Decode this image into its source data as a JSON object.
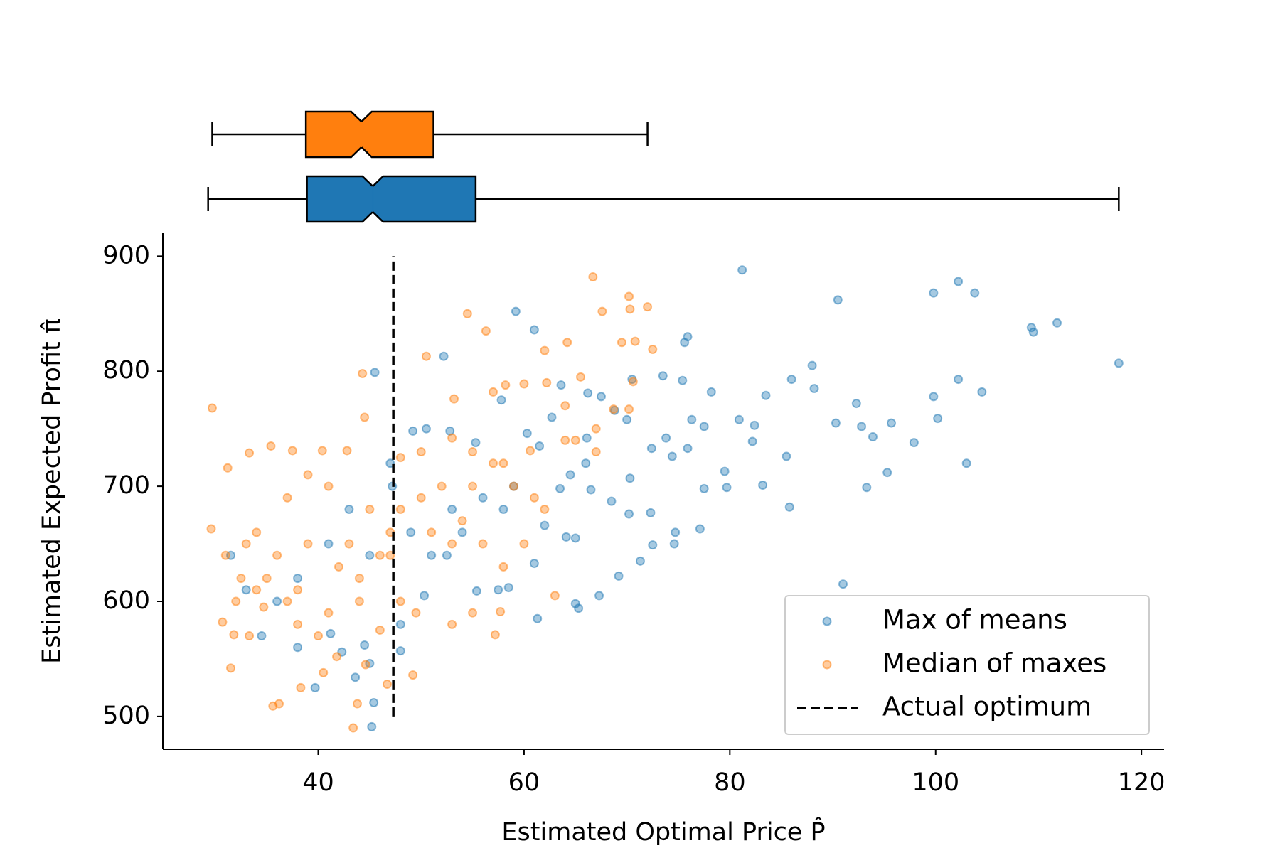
{
  "chart_data": [
    {
      "type": "box",
      "xlim": [
        24.9,
        122.2
      ],
      "notch": true,
      "series": [
        {
          "color": "#ff7f0e",
          "whislo": 29.7,
          "q1": 38.8,
          "med": 44.2,
          "q3": 51.2,
          "whishi": 72,
          "cilo": 43.2,
          "cihi": 45.2
        },
        {
          "color": "#1f77b4",
          "whislo": 29.3,
          "q1": 38.9,
          "med": 45.3,
          "q3": 55.3,
          "whishi": 117.8,
          "cilo": 44.3,
          "cihi": 46.3
        }
      ]
    },
    {
      "type": "scatter",
      "xlabel": "Estimated Optimal Price P̂",
      "ylabel": "Estimated Expected Profit π̂",
      "xlim": [
        24.9,
        122.2
      ],
      "ylim": [
        471.5,
        920
      ],
      "xticks": [
        40,
        60,
        80,
        100,
        120
      ],
      "yticks": [
        500,
        600,
        700,
        800,
        900
      ],
      "grid": false,
      "legend": "lower right",
      "series": [
        {
          "name": "Max of means",
          "color": "#1f77b4",
          "x": [
            81.2,
            90.5,
            99.8,
            102.2,
            103.8,
            109.3,
            109.5,
            111.8,
            117.8,
            75.6,
            75.9,
            59.2,
            61,
            52.2,
            45.5,
            78.2,
            73.5,
            75.4,
            70.5,
            86,
            88,
            88.2,
            83.5,
            92.3,
            99.8,
            102.2,
            104.5,
            80.9,
            82.4,
            82.2,
            90.3,
            92.8,
            93.9,
            95.7,
            97.9,
            100.2,
            95.3,
            93.3,
            103,
            85.5,
            79.5,
            79.7,
            77.5,
            83.2,
            85.8,
            91,
            77.1,
            74.7,
            74.6,
            72.5,
            71.3,
            69.2,
            67.3,
            72.3,
            70.2,
            70.3,
            68.5,
            66.5,
            64.1,
            65,
            65,
            65.3,
            61.3,
            61,
            58.5,
            57.5,
            55.4,
            54,
            50.3,
            48,
            45.2,
            45.4,
            45,
            44.5,
            43.6,
            42.3,
            39.7,
            41.2,
            47.2,
            49.2,
            50.5,
            52.8,
            55.3,
            57.8,
            60.3,
            62.7,
            63.6,
            66.2,
            67.5,
            68.8,
            70,
            72.4,
            74.4,
            75.9,
            73.8,
            76.3,
            77.5,
            66.1,
            64.5,
            62,
            58,
            56,
            53,
            51,
            49,
            47,
            45,
            43,
            41,
            38,
            36,
            33,
            31.5,
            34.5,
            38,
            48,
            52.5,
            59,
            61.5,
            63.5,
            66
          ],
          "values": [
            888,
            862,
            868,
            878,
            868,
            838,
            834,
            842,
            807,
            825,
            830,
            852,
            836,
            813,
            799,
            782,
            796,
            792,
            793,
            793,
            805,
            785,
            779,
            772,
            778,
            793,
            782,
            758,
            753,
            739,
            755,
            752,
            743,
            755,
            738,
            759,
            712,
            699,
            720,
            726,
            713,
            699,
            698,
            701,
            682,
            615,
            663,
            660,
            650,
            649,
            635,
            622,
            605,
            677,
            676,
            707,
            687,
            697,
            656,
            655,
            598,
            594,
            585,
            633,
            612,
            610,
            609,
            660,
            605,
            557,
            491,
            512,
            546,
            562,
            534,
            556,
            525,
            572,
            700,
            748,
            750,
            748,
            738,
            775,
            746,
            760,
            788,
            781,
            778,
            766,
            758,
            733,
            726,
            733,
            742,
            758,
            752,
            742,
            710,
            666,
            680,
            690,
            680,
            640,
            660,
            720,
            640,
            680,
            650,
            620,
            600,
            610,
            640,
            570,
            560,
            580,
            640,
            700,
            735,
            698,
            720
          ]
        },
        {
          "name": "Median of maxes",
          "color": "#ff7f0e",
          "x": [
            66.7,
            70.2,
            70.3,
            72,
            67.6,
            54.5,
            56.3,
            64.2,
            62,
            69.5,
            70.8,
            72.5,
            50.5,
            44.3,
            62.2,
            64,
            65.5,
            58.2,
            60,
            57,
            53.2,
            68.7,
            70.2,
            70.6,
            67,
            64,
            60.6,
            58,
            55,
            53,
            50,
            48,
            44.5,
            42.8,
            40.4,
            37.5,
            35.4,
            33.3,
            31.2,
            29.7,
            29.6,
            31,
            32,
            30.7,
            31.8,
            31.5,
            33.3,
            34.7,
            35.6,
            36.2,
            38.3,
            40.5,
            41.8,
            43.4,
            43.8,
            44.6,
            46.7,
            49.2,
            48,
            44,
            41,
            38,
            36,
            34,
            32.5,
            37,
            39,
            41,
            43,
            45,
            47,
            50,
            52,
            54,
            56,
            58,
            60,
            62,
            63,
            55,
            53,
            57.2,
            57.7,
            49.5,
            46,
            40,
            38,
            35,
            33,
            42,
            44,
            46,
            48,
            51,
            53,
            55,
            57,
            59,
            61,
            65,
            67,
            47,
            39,
            37,
            34
          ],
          "values": [
            882,
            865,
            854,
            856,
            852,
            850,
            835,
            825,
            818,
            825,
            826,
            819,
            813,
            798,
            790,
            770,
            795,
            788,
            789,
            782,
            776,
            767,
            767,
            791,
            750,
            740,
            731,
            720,
            730,
            742,
            730,
            725,
            760,
            731,
            731,
            731,
            735,
            729,
            716,
            768,
            663,
            640,
            600,
            582,
            571,
            542,
            570,
            595,
            509,
            511,
            525,
            538,
            552,
            490,
            511,
            545,
            528,
            536,
            600,
            620,
            590,
            580,
            640,
            660,
            620,
            690,
            710,
            700,
            650,
            680,
            660,
            690,
            700,
            670,
            650,
            630,
            650,
            680,
            605,
            590,
            580,
            571,
            591,
            590,
            575,
            570,
            610,
            620,
            650,
            630,
            600,
            640,
            680,
            660,
            650,
            700,
            720,
            700,
            690,
            740,
            730,
            640,
            650,
            600,
            610
          ]
        }
      ],
      "lines": [
        {
          "name": "Actual optimum",
          "color": "#000000",
          "style": "dashed",
          "x": 47.3,
          "y": [
            500,
            900
          ]
        }
      ]
    }
  ]
}
